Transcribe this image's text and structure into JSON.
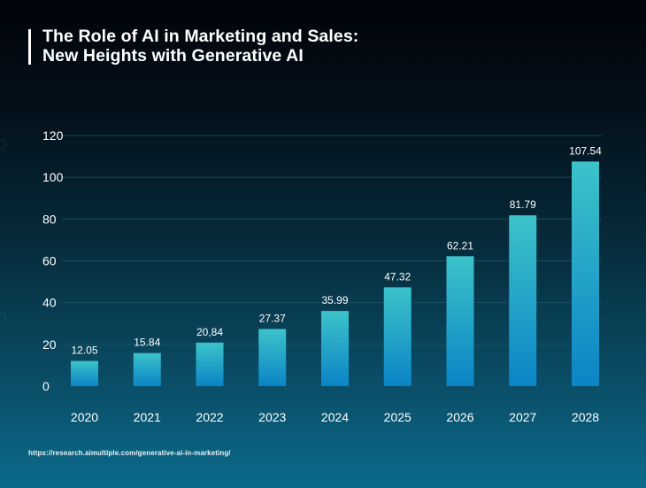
{
  "header": {
    "title_line1": "The Role of AI in Marketing and Sales:",
    "title_line2": "New Heights with Generative AI"
  },
  "footer": {
    "source_url": "https://research.aimultiple.com/generative-ai-in-marketing/"
  },
  "colors": {
    "bar_top": "#3cc3c9",
    "bar_bottom": "#0b84c6",
    "gridline": "#1e5a6a",
    "text": "#ffffff"
  },
  "chart_data": {
    "type": "bar",
    "title": "The Role of AI in Marketing and Sales: New Heights with Generative AI",
    "xlabel": "",
    "ylabel": "",
    "categories": [
      "2020",
      "2021",
      "2022",
      "2023",
      "2024",
      "2025",
      "2026",
      "2027",
      "2028"
    ],
    "values": [
      12.05,
      15.84,
      20.84,
      27.37,
      35.99,
      47.32,
      62.21,
      81.79,
      107.54
    ],
    "data_labels": [
      "12.05",
      "15.84",
      "20,84",
      "27.37",
      "35.99",
      "47.32",
      "62.21",
      "81.79",
      "107.54"
    ],
    "ylim": [
      0,
      120
    ],
    "yticks": [
      0,
      20,
      40,
      60,
      80,
      100,
      120
    ],
    "ytick_labels": [
      "0",
      "20",
      "40",
      "60",
      "80",
      "100",
      "120"
    ],
    "grid": true,
    "legend": "none"
  }
}
